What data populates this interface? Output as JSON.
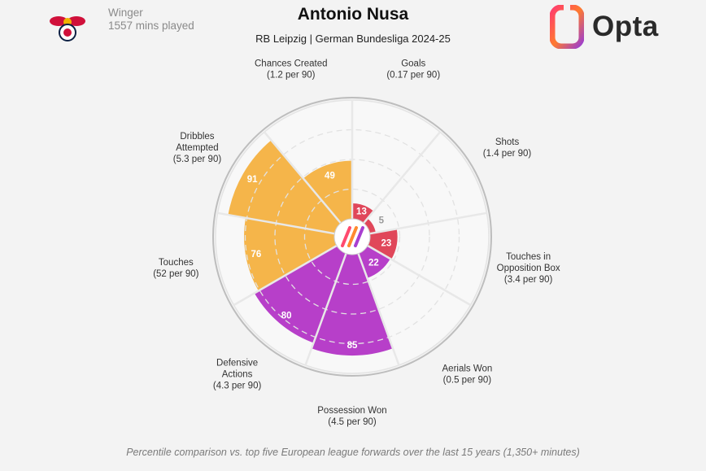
{
  "header": {
    "position": "Winger",
    "minutes": "1557 mins played",
    "title": "Antonio Nusa",
    "subtitle": "RB Leipzig | German Bundesliga 2024-25",
    "brand": "Opta"
  },
  "footer": "Percentile comparison vs. top five European league forwards over the last 15 years (1,350+ minutes)",
  "colors": {
    "attacking": "#e0475a",
    "possession": "#f5b54a",
    "defending": "#b73fc9",
    "background": "#f3f3f3"
  },
  "chart_data": {
    "type": "radial-bar",
    "range": [
      0,
      100
    ],
    "series": [
      {
        "metric": "Goals",
        "per90": "(0.17 per 90)",
        "percentile": 13,
        "group": "attacking"
      },
      {
        "metric": "Shots",
        "per90": "(1.4 per 90)",
        "percentile": 5,
        "group": "attacking"
      },
      {
        "metric": "Touches in Opposition Box",
        "per90": "(3.4 per 90)",
        "percentile": 23,
        "group": "attacking"
      },
      {
        "metric": "Aerials Won",
        "per90": "(0.5 per 90)",
        "percentile": 22,
        "group": "defending"
      },
      {
        "metric": "Possession Won",
        "per90": "(4.5 per 90)",
        "percentile": 85,
        "group": "defending"
      },
      {
        "metric": "Defensive Actions",
        "per90": "(4.3 per 90)",
        "percentile": 80,
        "group": "defending"
      },
      {
        "metric": "Touches",
        "per90": "(52 per 90)",
        "percentile": 76,
        "group": "possession"
      },
      {
        "metric": "Dribbles Attempted",
        "per90": "(5.3 per 90)",
        "percentile": 91,
        "group": "possession"
      },
      {
        "metric": "Chances Created",
        "per90": "(1.2 per 90)",
        "percentile": 49,
        "group": "possession"
      }
    ]
  }
}
